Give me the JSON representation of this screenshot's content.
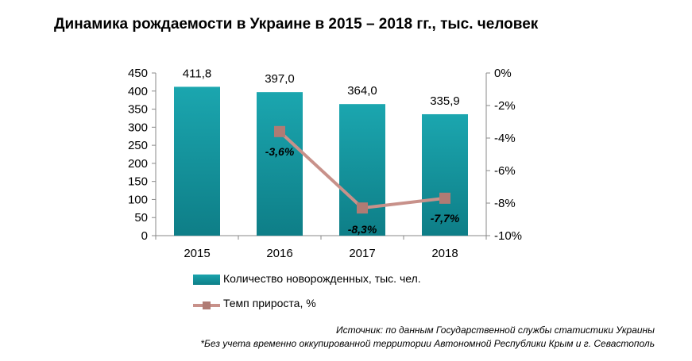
{
  "title": "Динамика рождаемости в Украине в 2015 – 2018 гг., тыс. человек",
  "chart_data": {
    "type": "bar",
    "categories": [
      "2015",
      "2016",
      "2017",
      "2018"
    ],
    "series": [
      {
        "name": "Количество новорожденных, тыс. чел.",
        "type": "bar",
        "axis": "left",
        "values": [
          411.8,
          397.0,
          364.0,
          335.9
        ],
        "data_labels": [
          "411,8",
          "397,0",
          "364,0",
          "335,9"
        ],
        "color": "#1596a0"
      },
      {
        "name": "Темп прироста, %",
        "type": "line",
        "axis": "right",
        "x": [
          "2016",
          "2017",
          "2018"
        ],
        "values": [
          -3.6,
          -8.3,
          -7.7
        ],
        "data_labels": [
          "-3,6%",
          "-8,3%",
          "-7,7%"
        ],
        "color": "#c8918a",
        "marker_color": "#b07b74"
      }
    ],
    "y_left": {
      "ylim": [
        0,
        450
      ],
      "ticks": [
        "0",
        "50",
        "100",
        "150",
        "200",
        "250",
        "300",
        "350",
        "400",
        "450"
      ]
    },
    "y_right": {
      "ylim": [
        -10,
        0
      ],
      "ticks": [
        "0%",
        "-2%",
        "-4%",
        "-6%",
        "-8%",
        "-10%"
      ]
    },
    "grid": false,
    "legend_position": "bottom"
  },
  "legend": {
    "bar_label": "Количество  новорожденных,  тыс. чел.",
    "line_label": "Темп  прироста,  %"
  },
  "source": {
    "line1": "Источник: по данным Государственной службы статистики Украины",
    "line2": "*Без учета временно оккупированной территории Автономной Республики Крым и г. Севастополь"
  }
}
